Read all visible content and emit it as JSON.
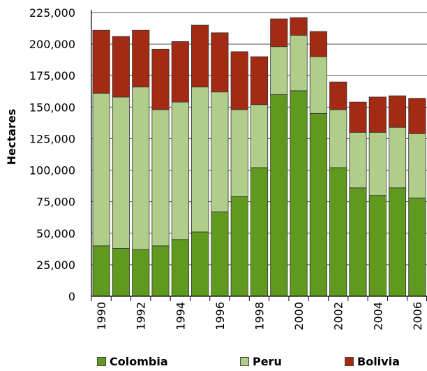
{
  "chart_data": {
    "type": "bar",
    "stacked": true,
    "title": "",
    "xlabel": "",
    "ylabel": "Hectares",
    "ylim": [
      0,
      225000
    ],
    "yticks": [
      0,
      25000,
      50000,
      75000,
      100000,
      125000,
      150000,
      175000,
      200000,
      225000
    ],
    "ytick_labels": [
      "0",
      "25,000",
      "50,000",
      "75,000",
      "100,000",
      "125,000",
      "150,000",
      "175,000",
      "200,000",
      "225,000"
    ],
    "categories": [
      "1990",
      "1991",
      "1992",
      "1993",
      "1994",
      "1995",
      "1996",
      "1997",
      "1998",
      "1999",
      "2000",
      "2001",
      "2002",
      "2003",
      "2004",
      "2005",
      "2006"
    ],
    "xtick_labels": [
      "1990",
      "",
      "1992",
      "",
      "1994",
      "",
      "1996",
      "",
      "1998",
      "",
      "2000",
      "",
      "2002",
      "",
      "2004",
      "",
      "2006"
    ],
    "grid": "horizontal",
    "legend_position": "bottom",
    "series": [
      {
        "name": "Colombia",
        "color": "#5f9a1e",
        "values": [
          40000,
          38000,
          37000,
          40000,
          45000,
          51000,
          67000,
          79000,
          102000,
          160000,
          163000,
          145000,
          102000,
          86000,
          80000,
          86000,
          78000
        ]
      },
      {
        "name": "Peru",
        "color": "#b0cd8a",
        "values": [
          121000,
          120000,
          129000,
          108000,
          109000,
          115000,
          95000,
          69000,
          50000,
          38000,
          44000,
          45000,
          46000,
          44000,
          50000,
          48000,
          51000
        ]
      },
      {
        "name": "Bolivia",
        "color": "#a32a13",
        "values": [
          50000,
          48000,
          45000,
          48000,
          48000,
          49000,
          47000,
          46000,
          38000,
          22000,
          14000,
          20000,
          22000,
          24000,
          28000,
          25000,
          28000
        ]
      }
    ]
  },
  "legend": {
    "items": [
      "Colombia",
      "Peru",
      "Bolivia"
    ]
  }
}
